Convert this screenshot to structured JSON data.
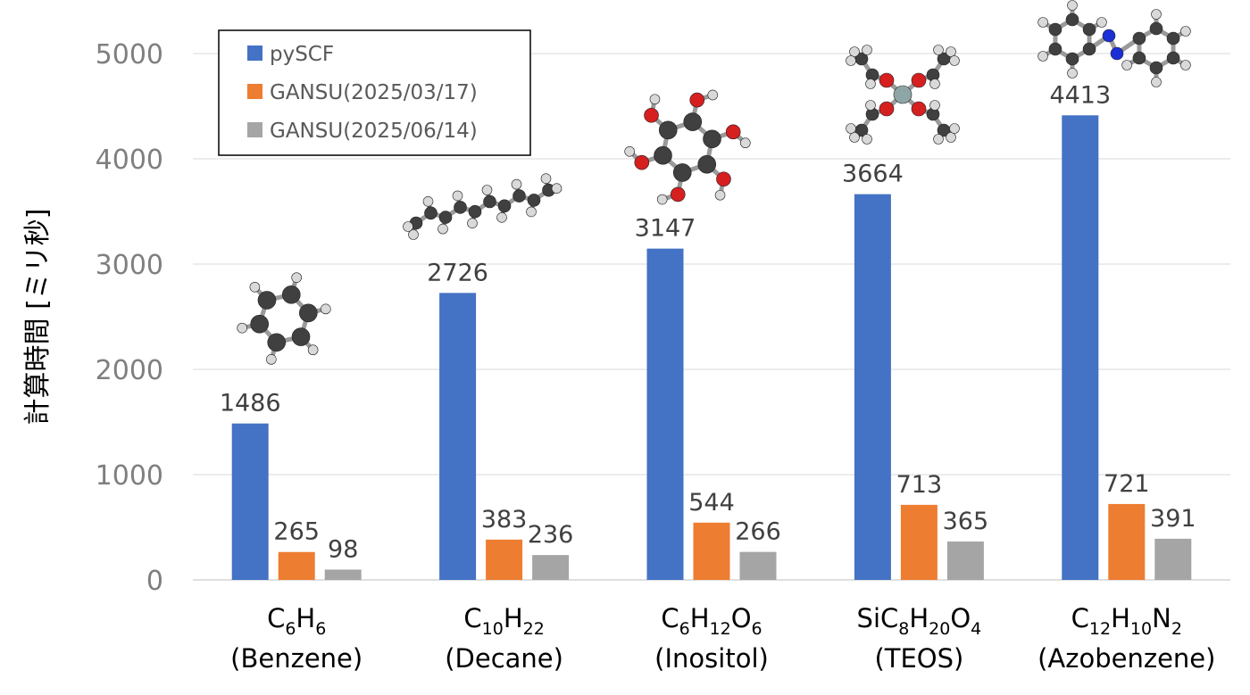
{
  "chart_data": {
    "type": "bar",
    "ylabel": "計算時間 [ミリ秒]",
    "ylim": [
      0,
      5000
    ],
    "yticks": [
      0,
      1000,
      2000,
      3000,
      4000,
      5000
    ],
    "grid": true,
    "legend_position": "top-left",
    "categories": [
      {
        "formula": [
          [
            "C",
            ""
          ],
          [
            "6",
            "sub"
          ],
          [
            "H",
            ""
          ],
          [
            "6",
            "sub"
          ]
        ],
        "name": "(Benzene)",
        "molecule": "benzene"
      },
      {
        "formula": [
          [
            "C",
            ""
          ],
          [
            "10",
            "sub"
          ],
          [
            "H",
            ""
          ],
          [
            "22",
            "sub"
          ]
        ],
        "name": "(Decane)",
        "molecule": "decane"
      },
      {
        "formula": [
          [
            "C",
            ""
          ],
          [
            "6",
            "sub"
          ],
          [
            "H",
            ""
          ],
          [
            "12",
            "sub"
          ],
          [
            "O",
            ""
          ],
          [
            "6",
            "sub"
          ]
        ],
        "name": "(Inositol)",
        "molecule": "inositol"
      },
      {
        "formula": [
          [
            "SiC",
            ""
          ],
          [
            "8",
            "sub"
          ],
          [
            "H",
            ""
          ],
          [
            "20",
            "sub"
          ],
          [
            "O",
            ""
          ],
          [
            "4",
            "sub"
          ]
        ],
        "name": "(TEOS)",
        "molecule": "teos"
      },
      {
        "formula": [
          [
            "C",
            ""
          ],
          [
            "12",
            "sub"
          ],
          [
            "H",
            ""
          ],
          [
            "10",
            "sub"
          ],
          [
            "N",
            ""
          ],
          [
            "2",
            "sub"
          ]
        ],
        "name": "(Azobenzene)",
        "molecule": "azobenzene"
      }
    ],
    "series": [
      {
        "name": "pySCF",
        "color": "#4472C4",
        "values": [
          1486,
          2726,
          3147,
          3664,
          4413
        ]
      },
      {
        "name": "GANSU(2025/03/17)",
        "color": "#ED7D31",
        "values": [
          265,
          383,
          544,
          713,
          721
        ]
      },
      {
        "name": "GANSU(2025/06/14)",
        "color": "#A5A5A5",
        "values": [
          98,
          236,
          266,
          365,
          391
        ]
      }
    ]
  }
}
